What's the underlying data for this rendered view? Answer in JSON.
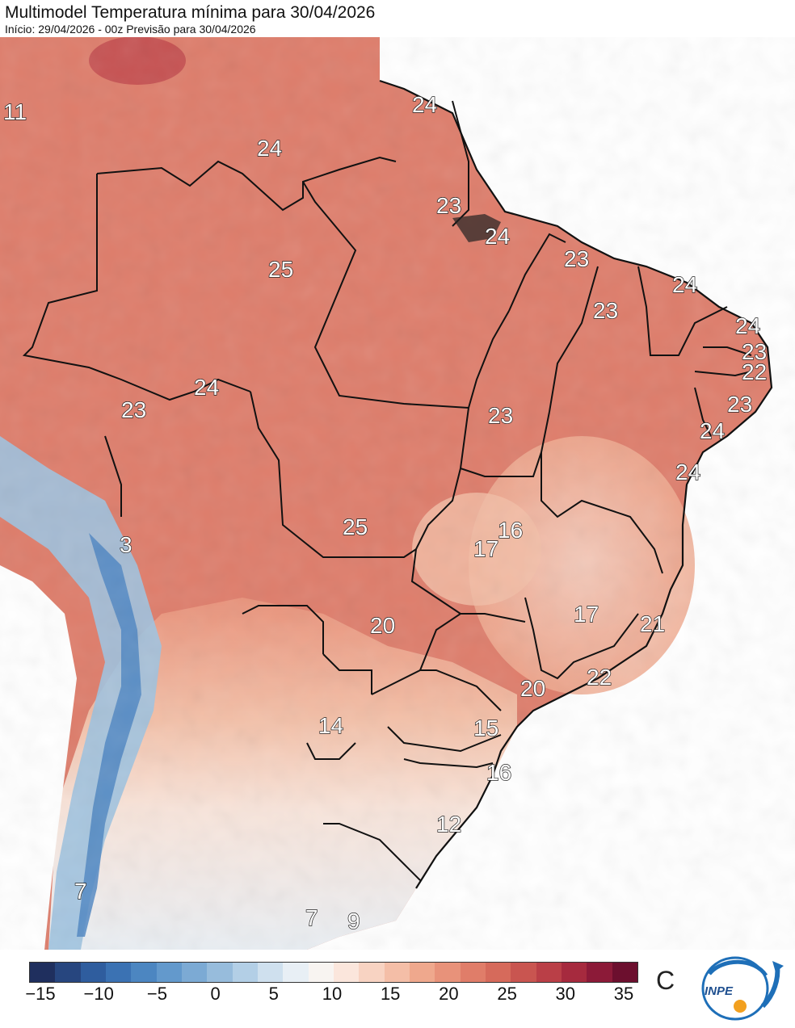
{
  "header": {
    "title": "Multimodel Temperatura mínima para 30/04/2026",
    "subtitle": "Início: 29/04/2026 - 00z  Previsão para 30/04/2026"
  },
  "map": {
    "labels": [
      "11",
      "24",
      "24",
      "23",
      "24",
      "25",
      "23",
      "24",
      "24",
      "23",
      "24",
      "23",
      "22",
      "23",
      "24",
      "23",
      "23",
      "24",
      "16",
      "17",
      "25",
      "20",
      "17",
      "21",
      "22",
      "20",
      "14",
      "15",
      "16",
      "12",
      "7",
      "7",
      "9",
      "3"
    ]
  },
  "legend": {
    "ticks": [
      "−15",
      "−10",
      "−5",
      "0",
      "5",
      "10",
      "15",
      "20",
      "25",
      "30",
      "35"
    ],
    "unit": "C",
    "colors": [
      "#1f2f5e",
      "#27467f",
      "#2f5d9e",
      "#3b72b3",
      "#4c86c1",
      "#6399cc",
      "#7caad4",
      "#97bcdc",
      "#b3cfe6",
      "#cfe0ee",
      "#e8eff5",
      "#f8f4f1",
      "#fbe6dc",
      "#f8d3c2",
      "#f4bea7",
      "#efa88d",
      "#e8927a",
      "#e07d69",
      "#d66a5b",
      "#c95550",
      "#ba3f47",
      "#a62a3e",
      "#8c1a38",
      "#6c0f2e"
    ]
  },
  "logo": {
    "text": "INPE"
  }
}
